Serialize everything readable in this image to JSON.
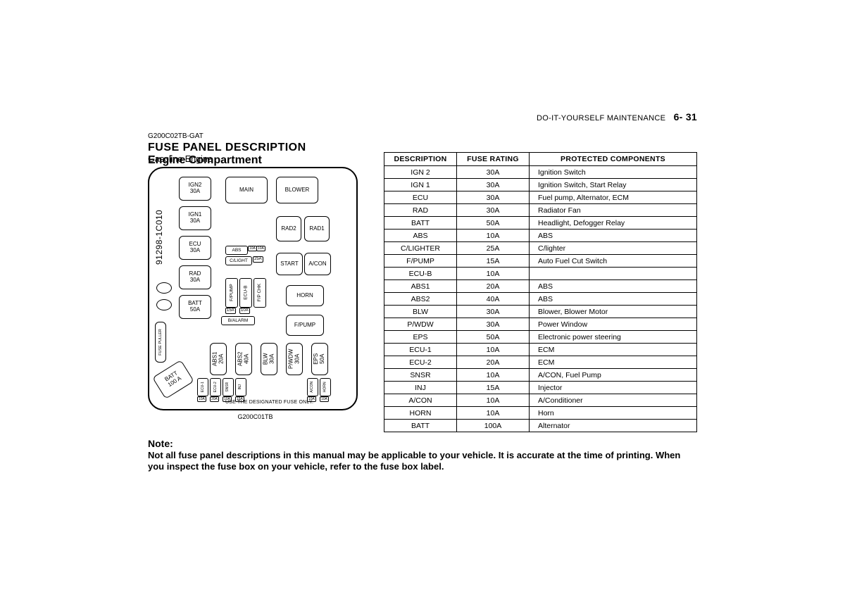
{
  "header": {
    "section": "DO-IT-YOURSELF MAINTENANCE",
    "page": "6- 31"
  },
  "doc_code": "G200C02TB-GAT",
  "title1": "FUSE PANEL DESCRIPTION",
  "title2": "Engine Compartment",
  "engine_type": "Gasoline Engine",
  "figure_code": "G200C01TB",
  "diagram": {
    "part_number": "91298-1C010",
    "designated_text": "USE THE DESIGNATED FUSE ONLY.",
    "fuse_puller": "FUSE PULLER",
    "left_column": [
      {
        "label": "IGN2",
        "amp": "30A"
      },
      {
        "label": "IGN1",
        "amp": "30A"
      },
      {
        "label": "ECU",
        "amp": "30A"
      },
      {
        "label": "RAD",
        "amp": "30A"
      },
      {
        "label": "BATT",
        "amp": "50A"
      }
    ],
    "main": "MAIN",
    "blower": "BLOWER",
    "rad2": "RAD2",
    "rad1": "RAD1",
    "start": "START",
    "acon": "A/CON",
    "horn": "HORN",
    "fpump": "F/PUMP",
    "balarm": "B/ALARM",
    "abs_mid": "ABS",
    "clight_mid": "C/LIGHT",
    "mid_small": [
      {
        "label": "F/PUMP",
        "amp": "15A"
      },
      {
        "label": "ECU-B",
        "amp": "10A"
      },
      {
        "label": "F/P CHK",
        "amp": ""
      }
    ],
    "mid_tiny": [
      "10A",
      "10A"
    ],
    "clight_amp": "25A",
    "bottom_row": [
      {
        "label": "ABS1",
        "amp": "20A"
      },
      {
        "label": "ABS2",
        "amp": "40A"
      },
      {
        "label": "BLW",
        "amp": "30A"
      },
      {
        "label": "P/WDW",
        "amp": "30A"
      },
      {
        "label": "EPS",
        "amp": "50A"
      }
    ],
    "bottom_small": [
      {
        "label": "ECU-1",
        "amp": "10A"
      },
      {
        "label": "ECU-2",
        "amp": "20A"
      },
      {
        "label": "SNSR",
        "amp": "10A"
      },
      {
        "label": "INJ",
        "amp": "15A"
      },
      {
        "label": "A/CON",
        "amp": "10A"
      },
      {
        "label": "HORN",
        "amp": "10A"
      }
    ],
    "batt_diag": {
      "label": "BATT",
      "amp": "100 A"
    }
  },
  "table": {
    "headers": [
      "DESCRIPTION",
      "FUSE  RATING",
      "PROTECTED  COMPONENTS"
    ],
    "rows": [
      [
        "IGN 2",
        "30A",
        "Ignition Switch"
      ],
      [
        "IGN 1",
        "30A",
        "Ignition Switch, Start Relay"
      ],
      [
        "ECU",
        "30A",
        "Fuel pump, Alternator, ECM"
      ],
      [
        "RAD",
        "30A",
        "Radiator Fan"
      ],
      [
        "BATT",
        "50A",
        "Headlight, Defogger Relay"
      ],
      [
        "ABS",
        "10A",
        "ABS"
      ],
      [
        "C/LIGHTER",
        "25A",
        "C/lighter"
      ],
      [
        "F/PUMP",
        "15A",
        "Auto Fuel Cut Switch"
      ],
      [
        "ECU-B",
        "10A",
        ""
      ],
      [
        "ABS1",
        "20A",
        "ABS"
      ],
      [
        "ABS2",
        "40A",
        "ABS"
      ],
      [
        "BLW",
        "30A",
        "Blower, Blower Motor"
      ],
      [
        "P/WDW",
        "30A",
        "Power Window"
      ],
      [
        "EPS",
        "50A",
        "Electronic power steering"
      ],
      [
        "ECU-1",
        "10A",
        "ECM"
      ],
      [
        "ECU-2",
        "20A",
        "ECM"
      ],
      [
        "SNSR",
        "10A",
        "A/CON, Fuel Pump"
      ],
      [
        "INJ",
        "15A",
        "Injector"
      ],
      [
        "A/CON",
        "10A",
        "A/Conditioner"
      ],
      [
        "HORN",
        "10A",
        "Horn"
      ],
      [
        "BATT",
        "100A",
        "Alternator"
      ]
    ]
  },
  "note": {
    "title": "Note:",
    "body": "Not all fuse panel descriptions in this manual may be applicable to your vehicle. It is accurate at the time of printing. When you inspect the fuse box on your vehicle, refer to the fuse box label."
  },
  "colors": {
    "text": "#000000",
    "border": "#000000",
    "background": "#ffffff"
  },
  "typography": {
    "body_font": "Arial",
    "title_size_pt": 16,
    "table_size_pt": 10.5,
    "note_size_pt": 13
  }
}
